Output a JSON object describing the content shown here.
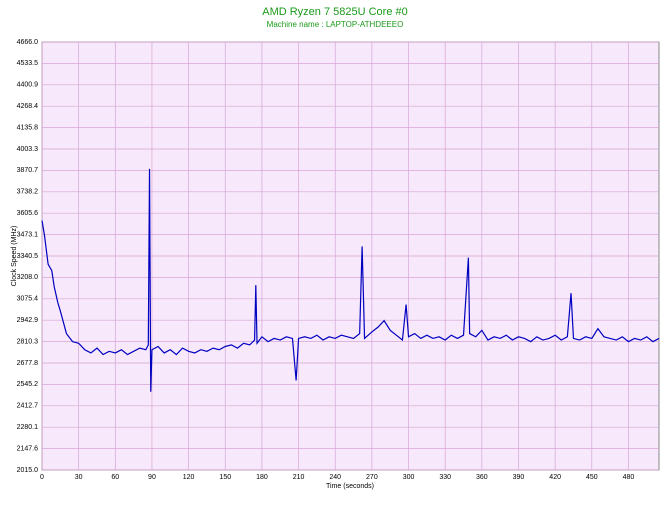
{
  "chart_data": {
    "type": "line",
    "title": "AMD Ryzen 7 5825U Core #0",
    "subtitle": "Machine name : LAPTOP-ATHDEEEO",
    "x_label": "Time (seconds)",
    "y_label": "Clock Speed (MHz)",
    "xlim": [
      0,
      505
    ],
    "ylim": [
      2015.0,
      4666.0
    ],
    "xticks": [
      0,
      30,
      60,
      90,
      120,
      150,
      180,
      210,
      240,
      270,
      300,
      330,
      360,
      390,
      420,
      450,
      480
    ],
    "yticks": [
      {
        "value": 2015.0,
        "label": "2015.0"
      },
      2147.6,
      2280.1,
      2412.7,
      2545.2,
      2677.8,
      2810.3,
      2942.9,
      3075.4,
      {
        "value": 3208.0,
        "label": "3208.0"
      },
      3340.5,
      3473.1,
      3605.6,
      3738.2,
      3870.7,
      4003.3,
      4135.8,
      4268.4,
      4400.9,
      4533.5,
      {
        "value": 4666.0,
        "label": "4666.0"
      }
    ],
    "grid": true,
    "series": [
      {
        "color": "#0000c0",
        "x": [
          0,
          2,
          5,
          8,
          10,
          13,
          15,
          20,
          25,
          30,
          35,
          40,
          45,
          50,
          55,
          60,
          65,
          70,
          75,
          80,
          85,
          87,
          88,
          89,
          90,
          95,
          100,
          105,
          110,
          115,
          120,
          125,
          130,
          135,
          140,
          145,
          150,
          155,
          160,
          165,
          170,
          174,
          175,
          176,
          180,
          185,
          190,
          195,
          200,
          205,
          208,
          210,
          215,
          220,
          225,
          230,
          235,
          240,
          245,
          250,
          255,
          260,
          262,
          264,
          270,
          275,
          280,
          285,
          290,
          295,
          298,
          300,
          305,
          310,
          315,
          320,
          325,
          330,
          335,
          340,
          345,
          349,
          350,
          355,
          360,
          365,
          370,
          375,
          380,
          385,
          390,
          395,
          400,
          405,
          410,
          415,
          420,
          425,
          430,
          433,
          435,
          440,
          445,
          450,
          455,
          460,
          465,
          470,
          475,
          480,
          485,
          490,
          495,
          500,
          505
        ],
        "values": [
          3560,
          3470,
          3290,
          3250,
          3150,
          3050,
          3000,
          2860,
          2810,
          2800,
          2760,
          2740,
          2770,
          2730,
          2750,
          2740,
          2760,
          2730,
          2750,
          2770,
          2760,
          2790,
          3880,
          2500,
          2760,
          2780,
          2740,
          2760,
          2730,
          2770,
          2750,
          2740,
          2760,
          2750,
          2770,
          2760,
          2780,
          2790,
          2770,
          2800,
          2790,
          2820,
          3160,
          2800,
          2840,
          2810,
          2830,
          2820,
          2840,
          2830,
          2570,
          2830,
          2840,
          2830,
          2850,
          2820,
          2840,
          2830,
          2850,
          2840,
          2830,
          2860,
          3400,
          2830,
          2870,
          2900,
          2940,
          2880,
          2850,
          2820,
          3040,
          2840,
          2860,
          2830,
          2850,
          2830,
          2840,
          2820,
          2850,
          2830,
          2850,
          3330,
          2860,
          2840,
          2880,
          2820,
          2840,
          2830,
          2850,
          2820,
          2840,
          2830,
          2810,
          2840,
          2820,
          2830,
          2850,
          2820,
          2840,
          3110,
          2830,
          2820,
          2840,
          2830,
          2890,
          2840,
          2830,
          2820,
          2840,
          2810,
          2830,
          2820,
          2840,
          2810,
          2830
        ]
      }
    ]
  }
}
